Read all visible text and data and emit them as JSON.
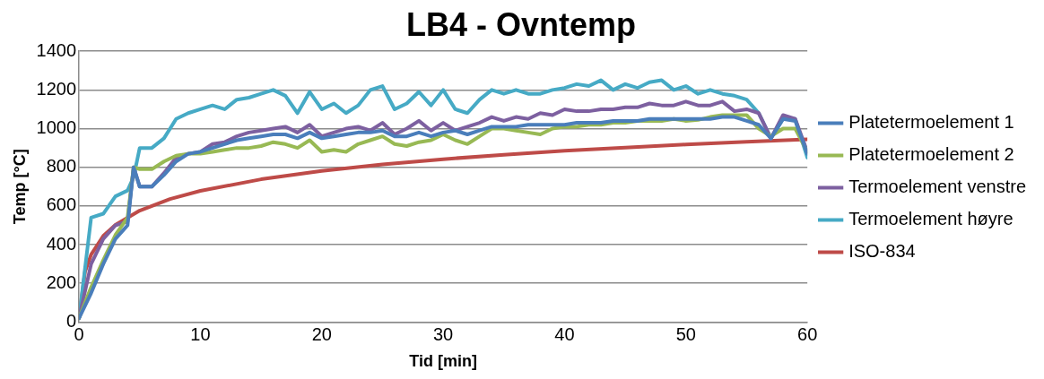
{
  "chart_data": {
    "type": "line",
    "title": "LB4 - Ovntemp",
    "xlabel": "Tid [min]",
    "ylabel": "Temp [°C]",
    "x": [
      0,
      1,
      2,
      3,
      4,
      4.5,
      5,
      6,
      7,
      8,
      9,
      10,
      11,
      12,
      13,
      14,
      15,
      16,
      17,
      18,
      19,
      20,
      21,
      22,
      23,
      24,
      25,
      26,
      27,
      28,
      29,
      30,
      31,
      32,
      33,
      34,
      35,
      36,
      37,
      38,
      39,
      40,
      41,
      42,
      43,
      44,
      45,
      46,
      47,
      48,
      49,
      50,
      51,
      52,
      53,
      54,
      55,
      56,
      57,
      58,
      59,
      60
    ],
    "xlim": [
      0,
      60
    ],
    "xticks": [
      0,
      10,
      20,
      30,
      40,
      50,
      60
    ],
    "ylim": [
      0,
      1400
    ],
    "yticks": [
      0,
      200,
      400,
      600,
      800,
      1000,
      1200,
      1400
    ],
    "grid": "y",
    "legend": "right",
    "marker": "none",
    "line_style": "solid",
    "series": [
      {
        "name": "Platetermoelement 1",
        "color": "#4a7ebb",
        "values": [
          20,
          150,
          300,
          430,
          500,
          800,
          700,
          700,
          760,
          830,
          870,
          880,
          900,
          920,
          940,
          950,
          960,
          970,
          970,
          950,
          980,
          950,
          960,
          970,
          980,
          980,
          990,
          960,
          960,
          980,
          960,
          980,
          990,
          970,
          990,
          1010,
          1010,
          1010,
          1020,
          1020,
          1020,
          1020,
          1030,
          1030,
          1030,
          1040,
          1040,
          1040,
          1050,
          1050,
          1050,
          1050,
          1050,
          1050,
          1060,
          1060,
          1040,
          1020,
          950,
          1050,
          1040,
          870
        ]
      },
      {
        "name": "Platetermoelement 2",
        "color": "#98b954",
        "values": [
          20,
          180,
          320,
          450,
          540,
          800,
          790,
          790,
          830,
          860,
          870,
          870,
          880,
          890,
          900,
          900,
          910,
          930,
          920,
          900,
          940,
          880,
          890,
          880,
          920,
          940,
          960,
          920,
          910,
          930,
          940,
          970,
          940,
          920,
          960,
          1000,
          1000,
          990,
          980,
          970,
          1000,
          1010,
          1010,
          1020,
          1020,
          1030,
          1030,
          1040,
          1040,
          1040,
          1050,
          1040,
          1045,
          1060,
          1070,
          1070,
          1070,
          1000,
          960,
          1000,
          1000,
          880
        ]
      },
      {
        "name": "Termoelement venstre",
        "color": "#7d60a0",
        "values": [
          20,
          300,
          430,
          500,
          520,
          800,
          700,
          700,
          770,
          850,
          870,
          880,
          920,
          930,
          960,
          980,
          990,
          1000,
          1010,
          980,
          1020,
          960,
          980,
          1000,
          1010,
          990,
          1030,
          970,
          1000,
          1040,
          990,
          1030,
          990,
          1010,
          1030,
          1060,
          1040,
          1060,
          1050,
          1080,
          1070,
          1100,
          1090,
          1090,
          1100,
          1100,
          1110,
          1110,
          1130,
          1120,
          1120,
          1140,
          1120,
          1120,
          1140,
          1090,
          1100,
          1080,
          950,
          1070,
          1050,
          880
        ]
      },
      {
        "name": "Termoelement høyre",
        "color": "#46aac5",
        "values": [
          20,
          540,
          560,
          650,
          680,
          750,
          900,
          900,
          950,
          1050,
          1080,
          1100,
          1120,
          1100,
          1150,
          1160,
          1180,
          1200,
          1170,
          1080,
          1190,
          1100,
          1130,
          1080,
          1120,
          1200,
          1220,
          1100,
          1130,
          1190,
          1120,
          1200,
          1100,
          1080,
          1150,
          1200,
          1180,
          1200,
          1180,
          1180,
          1200,
          1210,
          1230,
          1220,
          1250,
          1200,
          1230,
          1210,
          1240,
          1250,
          1200,
          1220,
          1180,
          1200,
          1180,
          1170,
          1150,
          1080,
          950,
          1050,
          1050,
          850
        ]
      },
      {
        "name": "ISO-834",
        "color": "#be4b48",
        "x": [
          0,
          0.5,
          1,
          2,
          3,
          5,
          7.5,
          10,
          15,
          20,
          25,
          30,
          35,
          40,
          45,
          50,
          55,
          60
        ],
        "values": [
          20,
          261,
          349,
          445,
          502,
          576,
          636,
          678,
          738,
          781,
          815,
          842,
          865,
          885,
          902,
          918,
          932,
          945
        ]
      }
    ]
  }
}
